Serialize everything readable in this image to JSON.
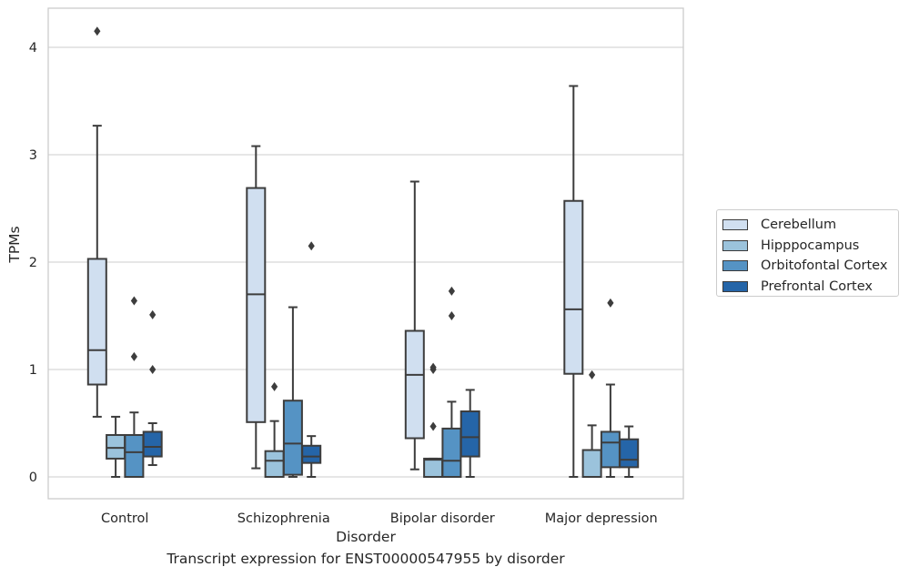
{
  "chart_data": {
    "type": "box",
    "title": "",
    "caption": "Transcript expression for ENST00000547955 by disorder",
    "xlabel": "Disorder",
    "ylabel": "TPMs",
    "ylim": [
      -0.2,
      4.37
    ],
    "yticks": [
      "0",
      "1",
      "2",
      "3",
      "4"
    ],
    "grid": true,
    "legend_position": "right-outside",
    "categories": [
      "Control",
      "Schizophrenia",
      "Bipolar disorder",
      "Major depression"
    ],
    "series": [
      {
        "name": "Cerebellum",
        "color": "#d0dff0",
        "boxes": [
          {
            "whislo": 0.56,
            "q1": 0.86,
            "med": 1.18,
            "q3": 2.03,
            "whishi": 3.27,
            "fliers": [
              4.15
            ]
          },
          {
            "whislo": 0.08,
            "q1": 0.51,
            "med": 1.7,
            "q3": 2.69,
            "whishi": 3.08,
            "fliers": []
          },
          {
            "whislo": 0.07,
            "q1": 0.36,
            "med": 0.95,
            "q3": 1.36,
            "whishi": 2.75,
            "fliers": []
          },
          {
            "whislo": 0.0,
            "q1": 0.96,
            "med": 1.56,
            "q3": 2.57,
            "whishi": 3.64,
            "fliers": []
          }
        ]
      },
      {
        "name": "Hipppocampus",
        "color": "#9bc3dc",
        "boxes": [
          {
            "whislo": 0.0,
            "q1": 0.17,
            "med": 0.27,
            "q3": 0.39,
            "whishi": 0.56,
            "fliers": []
          },
          {
            "whislo": 0.0,
            "q1": 0.0,
            "med": 0.15,
            "q3": 0.24,
            "whishi": 0.52,
            "fliers": [
              0.84
            ]
          },
          {
            "whislo": 0.0,
            "q1": 0.0,
            "med": 0.16,
            "q3": 0.17,
            "whishi": 0.17,
            "fliers": [
              0.47,
              1.0,
              1.02
            ]
          },
          {
            "whislo": 0.0,
            "q1": 0.0,
            "med": 0.25,
            "q3": 0.25,
            "whishi": 0.48,
            "fliers": [
              0.95
            ]
          }
        ]
      },
      {
        "name": "Orbitofontal Cortex",
        "color": "#5593c4",
        "boxes": [
          {
            "whislo": 0.0,
            "q1": 0.0,
            "med": 0.23,
            "q3": 0.39,
            "whishi": 0.6,
            "fliers": [
              1.12,
              1.64
            ]
          },
          {
            "whislo": 0.0,
            "q1": 0.02,
            "med": 0.31,
            "q3": 0.71,
            "whishi": 1.58,
            "fliers": []
          },
          {
            "whislo": 0.0,
            "q1": 0.0,
            "med": 0.15,
            "q3": 0.45,
            "whishi": 0.7,
            "fliers": [
              1.5,
              1.73
            ]
          },
          {
            "whislo": 0.0,
            "q1": 0.09,
            "med": 0.32,
            "q3": 0.42,
            "whishi": 0.86,
            "fliers": [
              1.62
            ]
          }
        ]
      },
      {
        "name": "Prefrontal Cortex",
        "color": "#2565a8",
        "boxes": [
          {
            "whislo": 0.11,
            "q1": 0.19,
            "med": 0.28,
            "q3": 0.42,
            "whishi": 0.5,
            "fliers": [
              1.0,
              1.51
            ]
          },
          {
            "whislo": 0.0,
            "q1": 0.13,
            "med": 0.19,
            "q3": 0.29,
            "whishi": 0.38,
            "fliers": [
              2.15
            ]
          },
          {
            "whislo": 0.0,
            "q1": 0.19,
            "med": 0.37,
            "q3": 0.61,
            "whishi": 0.81,
            "fliers": []
          },
          {
            "whislo": 0.0,
            "q1": 0.09,
            "med": 0.16,
            "q3": 0.35,
            "whishi": 0.47,
            "fliers": []
          }
        ]
      }
    ]
  }
}
